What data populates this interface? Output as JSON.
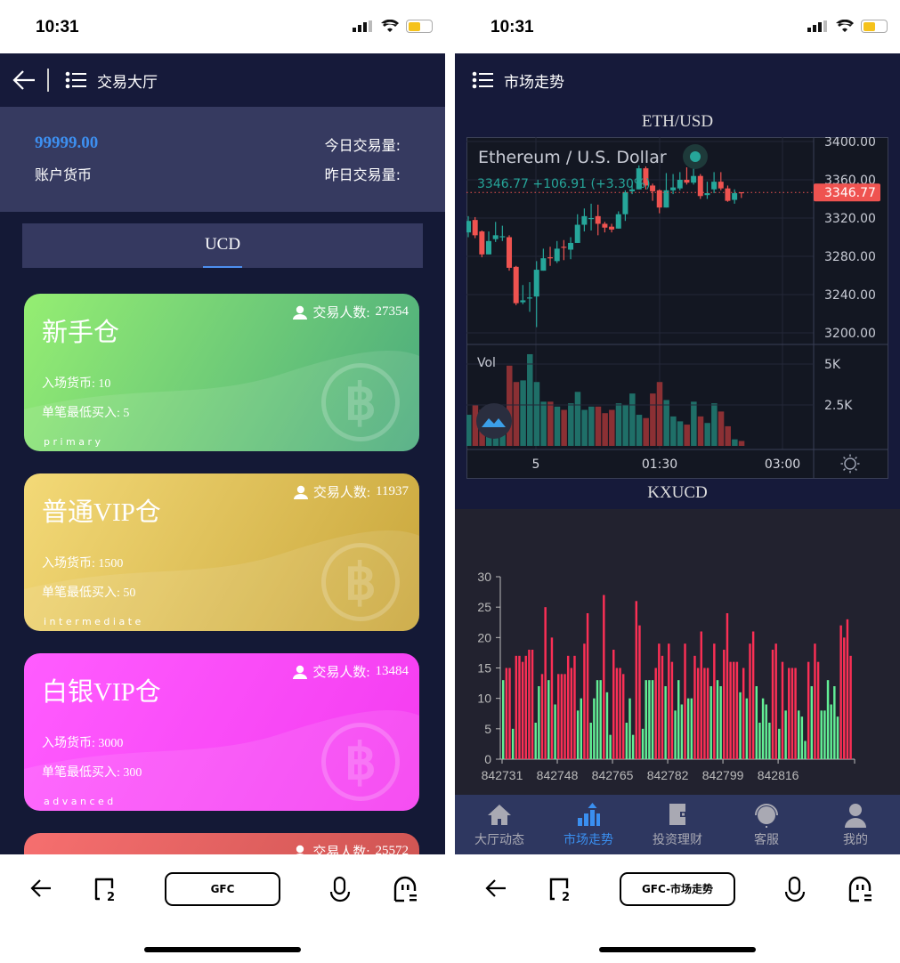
{
  "status_bar": {
    "time": "10:31"
  },
  "left": {
    "header": {
      "title": "交易大厅"
    },
    "account": {
      "balance": "99999.00",
      "balance_label": "账户货币",
      "today_label": "今日交易量:",
      "yesterday_label": "昨日交易量:"
    },
    "tab": "UCD",
    "cards": [
      {
        "title": "新手仓",
        "count_label": "交易人数:",
        "count": "27354",
        "entry_label": "入场货币:",
        "entry": "10",
        "min_label": "单笔最低买入:",
        "min": "5",
        "level": "primary",
        "colors": [
          "#95ee72",
          "#4aaa7d"
        ]
      },
      {
        "title": "普通VIP仓",
        "count_label": "交易人数:",
        "count": "11937",
        "entry_label": "入场货币:",
        "entry": "1500",
        "min_label": "单笔最低买入:",
        "min": "50",
        "level": "intermediate",
        "colors": [
          "#f3d977",
          "#c9a63b"
        ]
      },
      {
        "title": "白银VIP仓",
        "count_label": "交易人数:",
        "count": "13484",
        "entry_label": "入场货币:",
        "entry": "3000",
        "min_label": "单笔最低买入:",
        "min": "300",
        "level": "advanced",
        "colors": [
          "#ff5cff",
          "#f43bf0"
        ]
      },
      {
        "title": "",
        "count_label": "交易人数:",
        "count": "25572",
        "colors": [
          "#f66f6f",
          "#c9504e"
        ]
      }
    ],
    "bottom_bar": {
      "pill": "GFC"
    }
  },
  "right": {
    "header": {
      "title": "市场走势"
    },
    "eth_title": "ETH/USD",
    "kx_title": "KXUCD",
    "nav": [
      {
        "label": "大厅动态",
        "icon": "home-icon"
      },
      {
        "label": "市场走势",
        "icon": "bar-chart-icon",
        "active": true
      },
      {
        "label": "投资理财",
        "icon": "wallet-icon"
      },
      {
        "label": "客服",
        "icon": "headset-icon"
      },
      {
        "label": "我的",
        "icon": "user-icon"
      }
    ],
    "bottom_bar": {
      "pill": "GFC-市场走势"
    }
  },
  "chart_data": [
    {
      "type": "candlestick",
      "title": "Ethereum / U.S. Dollar",
      "quote": "3346.77",
      "change": "+106.91 (+3.30%)",
      "last_price": "3346.77",
      "y_ticks": [
        "3400.00",
        "3360.00",
        "3320.00",
        "3280.00",
        "3240.00",
        "3200.00"
      ],
      "ylim": [
        3200,
        3400
      ],
      "x_ticks": [
        "5",
        "01:30",
        "03:00"
      ],
      "volume_label": "Vol",
      "volume_ticks": [
        "5K",
        "2.5K"
      ],
      "colors": {
        "up": "#26a69a",
        "down": "#ef5350"
      },
      "ohlc": [
        [
          3305,
          3317,
          3322,
          3300
        ],
        [
          3318,
          3302,
          3321,
          3299
        ],
        [
          3306,
          3282,
          3307,
          3279
        ],
        [
          3282,
          3296,
          3306,
          3282
        ],
        [
          3298,
          3302,
          3316,
          3295
        ],
        [
          3300,
          3301,
          3312,
          3296
        ],
        [
          3300,
          3268,
          3302,
          3265
        ],
        [
          3269,
          3231,
          3270,
          3229
        ],
        [
          3232,
          3234,
          3250,
          3230
        ],
        [
          3236,
          3237,
          3253,
          3222
        ],
        [
          3238,
          3266,
          3275,
          3206
        ],
        [
          3265,
          3278,
          3288,
          3265
        ],
        [
          3279,
          3278,
          3290,
          3270
        ],
        [
          3275,
          3288,
          3296,
          3273
        ],
        [
          3290,
          3289,
          3297,
          3276
        ],
        [
          3287,
          3294,
          3300,
          3277
        ],
        [
          3294,
          3313,
          3324,
          3294
        ],
        [
          3313,
          3322,
          3330,
          3306
        ],
        [
          3319,
          3320,
          3335,
          3307
        ],
        [
          3322,
          3314,
          3334,
          3302
        ],
        [
          3314,
          3310,
          3316,
          3305
        ],
        [
          3311,
          3308,
          3314,
          3305
        ],
        [
          3309,
          3324,
          3327,
          3309
        ],
        [
          3324,
          3347,
          3349,
          3317
        ],
        [
          3348,
          3350,
          3355,
          3345
        ],
        [
          3350,
          3372,
          3375,
          3350
        ],
        [
          3372,
          3354,
          3374,
          3350
        ],
        [
          3354,
          3348,
          3356,
          3338
        ],
        [
          3349,
          3331,
          3350,
          3325
        ],
        [
          3331,
          3349,
          3367,
          3331
        ],
        [
          3349,
          3352,
          3366,
          3345
        ],
        [
          3351,
          3360,
          3368,
          3349
        ],
        [
          3360,
          3357,
          3373,
          3355
        ],
        [
          3357,
          3364,
          3376,
          3355
        ],
        [
          3364,
          3343,
          3366,
          3340
        ],
        [
          3344,
          3346,
          3358,
          3340
        ],
        [
          3350,
          3358,
          3368,
          3346
        ],
        [
          3358,
          3351,
          3368,
          3349
        ],
        [
          3351,
          3338,
          3354,
          3337
        ],
        [
          3339,
          3346,
          3350,
          3335
        ],
        [
          3347,
          3346,
          3347,
          3341
        ]
      ],
      "volume_k": [
        1.9,
        2.5,
        2.2,
        2.0,
        1.8,
        2.2,
        4.9,
        3.9,
        4.0,
        5.6,
        3.9,
        2.7,
        2.7,
        2.4,
        2.2,
        2.6,
        3.3,
        2.2,
        2.4,
        2.4,
        2.0,
        2.2,
        2.6,
        2.5,
        3.2,
        1.9,
        1.7,
        3.2,
        3.9,
        2.8,
        1.8,
        1.5,
        1.3,
        2.7,
        1.8,
        1.4,
        2.6,
        2.1,
        1.2,
        0.4,
        0.3
      ]
    },
    {
      "type": "bar",
      "title": "KXUCD",
      "ylim": [
        0,
        30
      ],
      "y_ticks": [
        "0",
        "5",
        "10",
        "15",
        "20",
        "25",
        "30"
      ],
      "x_ticks": [
        "842731",
        "842748",
        "842765",
        "842782",
        "842799",
        "842816"
      ],
      "colors": {
        "up": "#62ee95",
        "down": "#fb2f55"
      },
      "values": [
        13,
        15,
        15,
        5,
        17,
        17,
        16,
        17,
        18,
        18,
        6,
        12,
        14,
        25,
        13,
        20,
        9,
        14,
        14,
        14,
        17,
        15,
        17,
        8,
        10,
        19,
        24,
        6,
        10,
        13,
        13,
        27,
        11,
        4,
        18,
        15,
        15,
        14,
        6,
        10,
        4,
        26,
        22,
        5,
        13,
        13,
        13,
        15,
        19,
        17,
        12,
        19,
        16,
        8,
        13,
        9,
        19,
        10,
        10,
        17,
        15,
        21,
        15,
        15,
        12,
        19,
        13,
        12,
        18,
        24,
        16,
        16,
        16,
        11,
        15,
        10,
        19,
        21,
        12,
        6,
        10,
        9,
        6,
        18,
        19,
        5,
        16,
        8,
        15,
        15,
        15,
        8,
        7,
        3,
        16,
        12,
        19,
        16,
        8,
        8,
        13,
        9,
        12,
        7,
        22,
        20,
        23,
        17
      ],
      "direction": "GRRGRRRRRRGGRRGRGRRRRRRGGRRGGGGRGGRRRRGGGRRGGGGRRRGRRGGGRGGRRRRRGRGGRRRRRGRGRRGGGGGRRGRGRRRGGGRGRRGGGGGGRRRR"
    }
  ]
}
